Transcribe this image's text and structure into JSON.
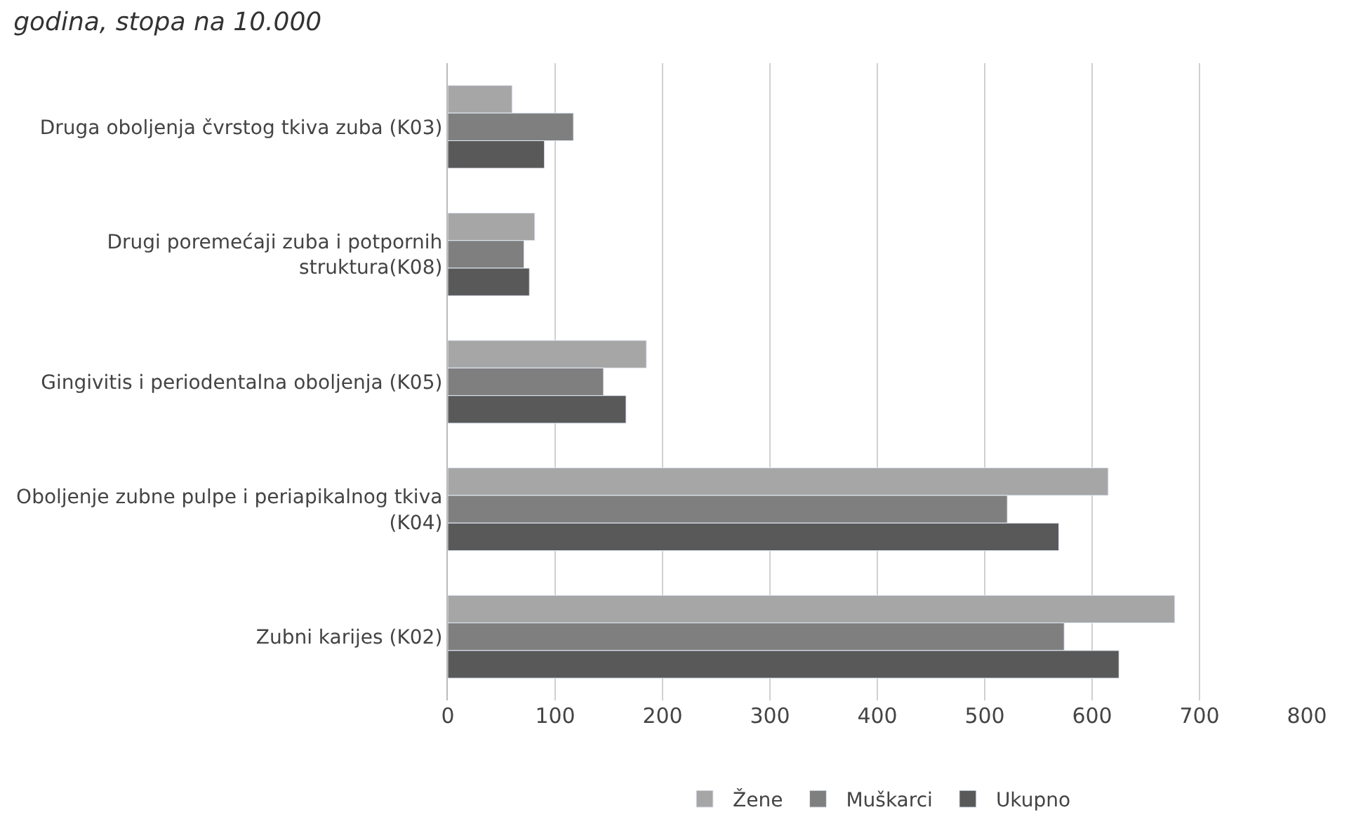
{
  "chart_data": {
    "type": "bar",
    "orientation": "horizontal",
    "title": "godina, stopa na 10.000",
    "categories": [
      "Druga oboljenja čvrstog tkiva zuba (K03)",
      "Drugi poremećaji zuba i potpornih\nstruktura(K08)",
      "Gingivitis i periodentalna oboljenja (K05)",
      "Oboljenje zubne pulpe i periapikalnog tkiva\n(K04)",
      "Zubni karijes (K02)"
    ],
    "series": [
      {
        "name": "Žene",
        "color": "#a6a6a6",
        "values": [
          60,
          81,
          185,
          615,
          677
        ]
      },
      {
        "name": "Muškarci",
        "color": "#7f7f7f",
        "values": [
          117,
          71,
          145,
          521,
          574
        ]
      },
      {
        "name": "Ukupno",
        "color": "#595959",
        "values": [
          90,
          76,
          166,
          569,
          625
        ]
      }
    ],
    "xlim": [
      0,
      800
    ],
    "xticks": [
      0,
      100,
      200,
      300,
      400,
      500,
      600,
      700,
      800
    ],
    "grid": "x",
    "legend": "bottom"
  }
}
